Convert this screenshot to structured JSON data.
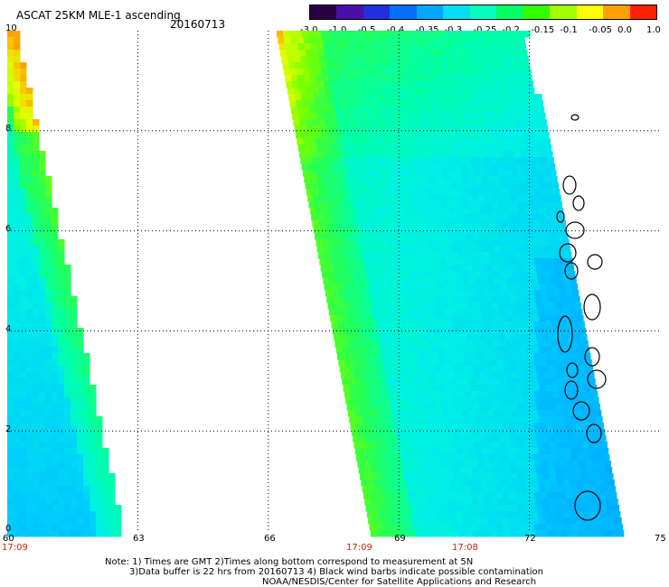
{
  "header": {
    "title": "ASCAT 25KM MLE-1 ascending",
    "date": "20160713"
  },
  "colorbar": {
    "labels": [
      "-3.0",
      "-1.0",
      "-0.5",
      "-0.4",
      "-0.35",
      "-0.3",
      "-0.25",
      "-0.2",
      "-0.15",
      "-0.1",
      "-0.05",
      "0.0",
      "1.0"
    ],
    "colors": [
      "#2a0045",
      "#4a0fa8",
      "#2030e0",
      "#0070ff",
      "#00a8ff",
      "#00e0f0",
      "#00ffc0",
      "#00ff60",
      "#30ff00",
      "#a0ff00",
      "#ffff00",
      "#ffa000",
      "#ff2000"
    ]
  },
  "axes": {
    "y_ticks": [
      "10",
      "8",
      "6",
      "4",
      "2",
      "0"
    ],
    "x_ticks": [
      "60",
      "63",
      "66",
      "69",
      "72",
      "75"
    ],
    "times": [
      "17:09",
      "17:09",
      "17:08"
    ]
  },
  "map_data": {
    "lon_range": [
      60,
      75
    ],
    "lat_range": [
      0,
      10
    ],
    "left_swath_time": "17:09",
    "right_swath_times": [
      "17:09",
      "17:08"
    ],
    "gridlines": "dotted",
    "coastlines": "Maldives atolls outlined in black near 73E"
  },
  "notes": {
    "line1": "Note: 1) Times are GMT 2)Times along bottom correspond to measurement at 5N",
    "line2": "3)Data buffer is 22 hrs from 20160713 4) Black wind barbs indicate possible contamination",
    "line3": "NOAA/NESDIS/Center for Satellite Applications and Research"
  }
}
